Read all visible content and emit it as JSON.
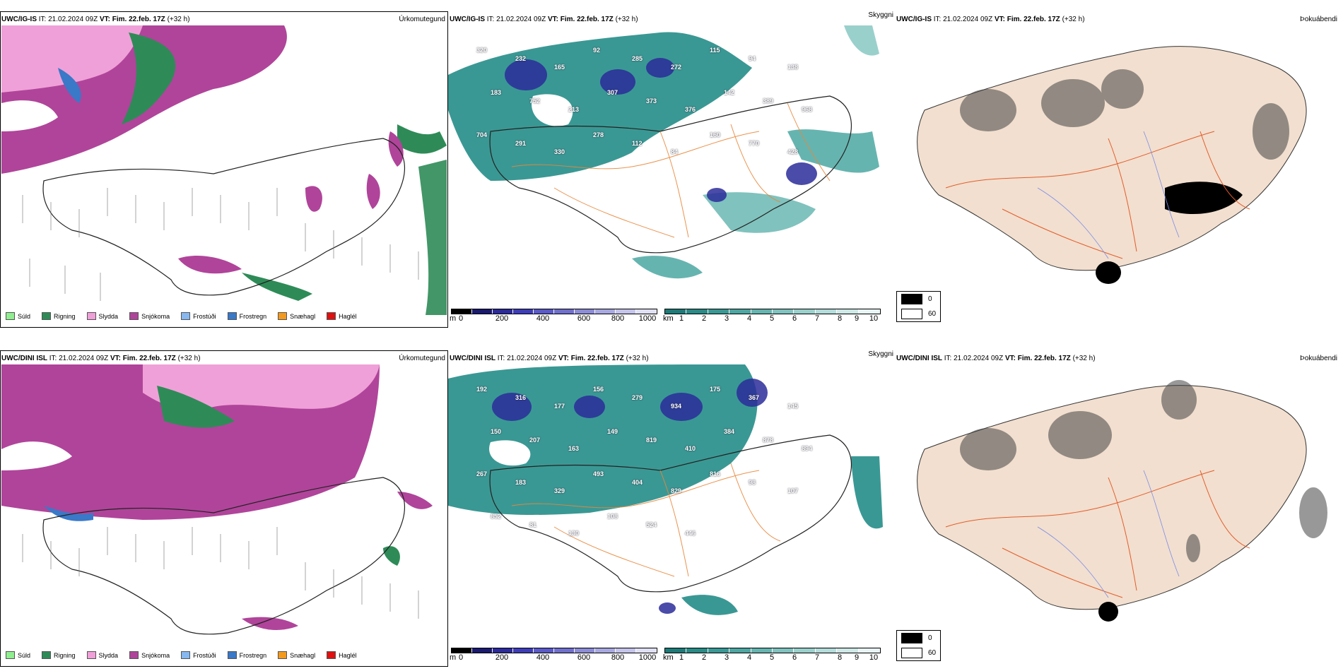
{
  "rows": [
    {
      "model": "UWC/IG-IS",
      "it_label": "IT:",
      "it_value": "21.02.2024 09Z",
      "vt_label": "VT:",
      "vt_value": "Fim. 22.feb. 17Z",
      "lead": "(+32 h)"
    },
    {
      "model": "UWC/DINI ISL",
      "it_label": "IT:",
      "it_value": "21.02.2024 09Z",
      "vt_label": "VT:",
      "vt_value": "Fim. 22.feb. 17Z",
      "lead": "(+32 h)"
    }
  ],
  "panel_titles": {
    "precip": "Úrkomutegund",
    "cloud": "Skyggni",
    "fog": "Þokuábendi"
  },
  "precip_legend": [
    {
      "label": "Súld",
      "color": "#90ee90"
    },
    {
      "label": "Rigning",
      "color": "#2e8b57"
    },
    {
      "label": "Slydda",
      "color": "#f0a0d8"
    },
    {
      "label": "Snjókoma",
      "color": "#b0449a"
    },
    {
      "label": "Frostúði",
      "color": "#87b8f0"
    },
    {
      "label": "Frostregn",
      "color": "#3a78c8"
    },
    {
      "label": "Snæhagl",
      "color": "#f39a1e"
    },
    {
      "label": "Haglél",
      "color": "#e01010"
    }
  ],
  "ceiling_scale": {
    "unit": "m",
    "ticks": [
      "0",
      "200",
      "400",
      "600",
      "800",
      "1000"
    ],
    "colors": [
      "#000000",
      "#1a1a6e",
      "#2b2b9a",
      "#3d3db8",
      "#5a5ac8",
      "#7070cc",
      "#8c8cd6",
      "#a8a8e0",
      "#c4c4ea",
      "#e0e0f4"
    ]
  },
  "visibility_scale": {
    "unit": "km",
    "ticks": [
      "1",
      "2",
      "3",
      "4",
      "5",
      "6",
      "7",
      "8",
      "9",
      "10"
    ],
    "colors": [
      "#1e7a78",
      "#2a8a86",
      "#3a9894",
      "#4ea6a2",
      "#66b4b0",
      "#80c2be",
      "#9ad0cc",
      "#b4dcda",
      "#cee8e6",
      "#e8f4f3"
    ]
  },
  "fog_scale": {
    "top": "0",
    "bottom": "60",
    "top_color": "#000000",
    "bottom_color": "#ffffff"
  },
  "ceiling_labels_top": [
    "320",
    "232",
    "165",
    "92",
    "285",
    "272",
    "115",
    "94",
    "138",
    "183",
    "752",
    "213",
    "307",
    "373",
    "376",
    "142",
    "389",
    "968",
    "704",
    "291",
    "330",
    "278",
    "112",
    "84",
    "160",
    "770",
    "428"
  ],
  "ceiling_labels_bottom": [
    "192",
    "316",
    "177",
    "156",
    "279",
    "934",
    "175",
    "367",
    "145",
    "150",
    "207",
    "163",
    "149",
    "819",
    "410",
    "384",
    "878",
    "894",
    "267",
    "183",
    "329",
    "493",
    "404",
    "829",
    "816",
    "98",
    "107",
    "852",
    "81",
    "130",
    "108",
    "524",
    "446"
  ]
}
